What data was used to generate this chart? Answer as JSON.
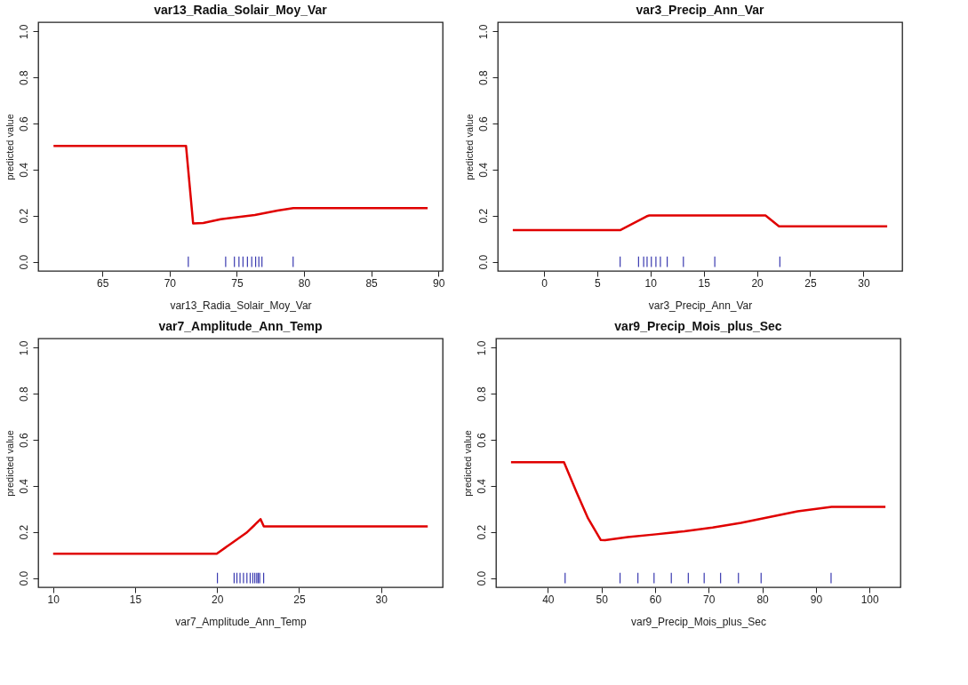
{
  "chart_data": [
    {
      "type": "line",
      "title": "var13_Radia_Solair_Moy_Var",
      "xlabel": "var13_Radia_Solair_Moy_Var",
      "ylabel": "predicted value",
      "xlim": [
        60.22,
        90.32
      ],
      "xticks": [
        65,
        70,
        75,
        80,
        85,
        90
      ],
      "ylim": [
        -0.04,
        1.04
      ],
      "yticks": [
        {
          "value": 0,
          "label": "0.0"
        },
        {
          "value": 0.2,
          "label": "0.2"
        },
        {
          "value": 0.4,
          "label": "0.4"
        },
        {
          "value": 0.6,
          "label": "0.6"
        },
        {
          "value": 0.8,
          "label": "0.8"
        },
        {
          "value": 1,
          "label": "1.0"
        }
      ],
      "grid": false,
      "series": [
        {
          "type": "line",
          "color": "#e00000",
          "x": [
            61.36,
            71.22,
            71.75,
            72.5,
            73.8,
            76.34,
            78.03,
            79.2,
            89.2
          ],
          "values": [
            0.503,
            0.503,
            0.166,
            0.168,
            0.185,
            0.203,
            0.222,
            0.233,
            0.233
          ]
        },
        {
          "type": "scatter",
          "color": "#3a3ab0",
          "x": [
            71.39,
            74.17,
            74.82,
            75.16,
            75.46,
            75.79,
            76.11,
            76.4,
            76.64,
            76.87,
            79.19
          ],
          "values": [
            0,
            0,
            0,
            0,
            0,
            0,
            0,
            0,
            0,
            0,
            0
          ]
        }
      ]
    },
    {
      "type": "line",
      "title": "var3_Precip_Ann_Var",
      "xlabel": "var3_Precip_Ann_Var",
      "ylabel": "predicted value",
      "xlim": [
        -4.34,
        33.64
      ],
      "xticks": [
        0,
        5,
        10,
        15,
        20,
        25,
        30
      ],
      "ylim": [
        -0.04,
        1.04
      ],
      "yticks": [
        {
          "value": 0,
          "label": "0.0"
        },
        {
          "value": 0.2,
          "label": "0.2"
        },
        {
          "value": 0.4,
          "label": "0.4"
        },
        {
          "value": 0.6,
          "label": "0.6"
        },
        {
          "value": 0.8,
          "label": "0.8"
        },
        {
          "value": 1,
          "label": "1.0"
        }
      ],
      "grid": false,
      "series": [
        {
          "type": "line",
          "color": "#e00000",
          "x": [
            -2.93,
            7.15,
            9.63,
            9.89,
            20.8,
            22.07,
            32.23
          ],
          "values": [
            0.137,
            0.137,
            0.197,
            0.201,
            0.201,
            0.154,
            0.154
          ]
        },
        {
          "type": "scatter",
          "color": "#3a3ab0",
          "x": [
            7.15,
            8.88,
            9.36,
            9.68,
            10.08,
            10.51,
            10.93,
            11.57,
            13.09,
            16.04,
            22.15
          ],
          "values": [
            0,
            0,
            0,
            0,
            0,
            0,
            0,
            0,
            0,
            0,
            0
          ]
        }
      ]
    },
    {
      "type": "line",
      "title": "var7_Amplitude_Ann_Temp",
      "xlabel": "var7_Amplitude_Ann_Temp",
      "ylabel": "predicted value",
      "xlim": [
        9.09,
        33.76
      ],
      "xticks": [
        10,
        15,
        20,
        25,
        30
      ],
      "ylim": [
        -0.04,
        1.04
      ],
      "yticks": [
        {
          "value": 0,
          "label": "0.0"
        },
        {
          "value": 0.2,
          "label": "0.2"
        },
        {
          "value": 0.4,
          "label": "0.4"
        },
        {
          "value": 0.6,
          "label": "0.6"
        },
        {
          "value": 0.8,
          "label": "0.8"
        },
        {
          "value": 1,
          "label": "1.0"
        }
      ],
      "grid": false,
      "series": [
        {
          "type": "line",
          "color": "#e00000",
          "x": [
            10,
            19.98,
            20.92,
            21.78,
            22.3,
            22.65,
            22.85,
            32.85
          ],
          "values": [
            0.106,
            0.106,
            0.153,
            0.196,
            0.231,
            0.256,
            0.224,
            0.224
          ]
        },
        {
          "type": "scatter",
          "color": "#3a3ab0",
          "x": [
            20.02,
            21.04,
            21.21,
            21.4,
            21.61,
            21.82,
            22.02,
            22.18,
            22.3,
            22.42,
            22.51,
            22.6,
            22.84
          ],
          "values": [
            0,
            0,
            0,
            0,
            0,
            0,
            0,
            0,
            0,
            0,
            0,
            0,
            0
          ]
        }
      ]
    },
    {
      "type": "line",
      "title": "var9_Precip_Mois_plus_Sec",
      "xlabel": "var9_Precip_Mois_plus_Sec",
      "ylabel": "predicted value",
      "xlim": [
        30.33,
        105.77
      ],
      "xticks": [
        40,
        50,
        60,
        70,
        80,
        90,
        100
      ],
      "ylim": [
        -0.04,
        1.04
      ],
      "yticks": [
        {
          "value": 0,
          "label": "0.0"
        },
        {
          "value": 0.2,
          "label": "0.2"
        },
        {
          "value": 0.4,
          "label": "0.4"
        },
        {
          "value": 0.6,
          "label": "0.6"
        },
        {
          "value": 0.8,
          "label": "0.8"
        },
        {
          "value": 1,
          "label": "1.0"
        }
      ],
      "grid": false,
      "series": [
        {
          "type": "line",
          "color": "#e00000",
          "x": [
            33.13,
            43.01,
            45.39,
            47.5,
            49.88,
            50.67,
            54.9,
            60.18,
            65.46,
            70.74,
            76.03,
            81.31,
            86.59,
            92.93,
            102.97
          ],
          "values": [
            0.503,
            0.503,
            0.371,
            0.259,
            0.165,
            0.164,
            0.178,
            0.19,
            0.203,
            0.219,
            0.24,
            0.265,
            0.29,
            0.309,
            0.309
          ]
        },
        {
          "type": "scatter",
          "color": "#3a3ab0",
          "x": [
            43.22,
            53.47,
            56.8,
            59.81,
            63.03,
            66.2,
            69.16,
            72.22,
            75.55,
            79.78,
            92.83
          ],
          "values": [
            0,
            0,
            0,
            0,
            0,
            0,
            0,
            0,
            0,
            0,
            0
          ]
        }
      ]
    }
  ]
}
